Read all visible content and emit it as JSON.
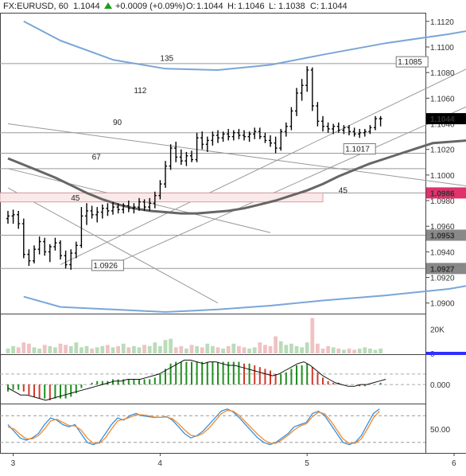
{
  "header": {
    "symbol": "FX:EURUSD, 60",
    "last": "1.1044",
    "change": "+0.0009 (+0.09%)",
    "o_label": "O:",
    "o_value": "1.1044",
    "h_label": "H:",
    "h_value": "1.1046",
    "l_label": "L:",
    "l_value": "1.1038",
    "c_label": "C:",
    "c_value": "1.1044",
    "up_color": "#1a9e1a"
  },
  "chart_data": [
    {
      "type": "candlestick",
      "price_axis": {
        "ylim": [
          1.0893,
          1.1123
        ],
        "ticks": [
          "1.1120",
          "1.1100",
          "1.1080",
          "1.1060",
          "1.1040",
          "1.1020",
          "1.1000",
          "1.0980",
          "1.0960",
          "1.0940",
          "1.0920",
          "1.0900"
        ],
        "badges": [
          {
            "text": "1.1044",
            "value": 1.1044,
            "color": "#000000"
          },
          {
            "text": "1.0986",
            "value": 1.0986,
            "color": "#e0336b"
          },
          {
            "text": "1.0953",
            "value": 1.0953,
            "color": "#888888"
          },
          {
            "text": "1.0927",
            "value": 1.0927,
            "color": "#888888"
          }
        ]
      },
      "x_axis": {
        "day_labels": [
          "3",
          "4",
          "5",
          "6"
        ],
        "day_index": [
          1,
          29,
          57,
          85
        ]
      },
      "annotations": [
        {
          "text": "1.1085",
          "x": 77,
          "y": 1.1085
        },
        {
          "text": "1.1017",
          "x": 67,
          "y": 1.1017
        },
        {
          "text": "1.0926",
          "x": 19,
          "y": 1.0926
        }
      ],
      "gann_labels": [
        {
          "text": "135",
          "x": 29,
          "y": 1.1089
        },
        {
          "text": "112",
          "x": 24,
          "y": 1.1064
        },
        {
          "text": "90",
          "x": 20,
          "y": 1.1039
        },
        {
          "text": "67",
          "x": 16,
          "y": 1.1012
        },
        {
          "text": "45",
          "x": 12,
          "y": 1.098
        },
        {
          "text": "45",
          "x": 63,
          "y": 1.0986
        },
        {
          "text": "67",
          "x": 91,
          "y": 1.1008
        }
      ],
      "horizontal_levels": [
        1.1087,
        1.1033,
        1.1017,
        1.1005,
        1.0986,
        1.0953,
        1.0927
      ],
      "ohlc": [
        [
          1.0966,
          1.0972,
          1.0962,
          1.0968
        ],
        [
          1.0968,
          1.0973,
          1.0962,
          1.0969
        ],
        [
          1.0969,
          1.0972,
          1.0958,
          1.0962
        ],
        [
          1.0962,
          1.0966,
          1.0935,
          1.0938
        ],
        [
          1.0938,
          1.0942,
          1.0929,
          1.0933
        ],
        [
          1.0933,
          1.0945,
          1.0931,
          1.0942
        ],
        [
          1.0942,
          1.0952,
          1.0938,
          1.0948
        ],
        [
          1.0948,
          1.0951,
          1.0937,
          1.094
        ],
        [
          1.094,
          1.0946,
          1.0932,
          1.0944
        ],
        [
          1.0944,
          1.0951,
          1.0941,
          1.0947
        ],
        [
          1.0947,
          1.0949,
          1.0934,
          1.0937
        ],
        [
          1.0937,
          1.0941,
          1.0927,
          1.093
        ],
        [
          1.093,
          1.0942,
          1.0926,
          1.0939
        ],
        [
          1.0939,
          1.0948,
          1.0935,
          1.0945
        ],
        [
          1.0945,
          1.0975,
          1.0943,
          1.0968
        ],
        [
          1.0968,
          1.0978,
          1.0961,
          1.0972
        ],
        [
          1.0972,
          1.0976,
          1.0966,
          1.0969
        ],
        [
          1.0969,
          1.0975,
          1.0963,
          1.0971
        ],
        [
          1.0971,
          1.0977,
          1.0966,
          1.0974
        ],
        [
          1.0974,
          1.0978,
          1.0968,
          1.0972
        ],
        [
          1.0972,
          1.0979,
          1.0969,
          1.0975
        ],
        [
          1.0975,
          1.0978,
          1.097,
          1.0973
        ],
        [
          1.0973,
          1.0978,
          1.097,
          1.0976
        ],
        [
          1.0976,
          1.098,
          1.0971,
          1.0974
        ],
        [
          1.0974,
          1.0978,
          1.097,
          1.0975
        ],
        [
          1.0975,
          1.0982,
          1.0972,
          1.0979
        ],
        [
          1.0979,
          1.0981,
          1.0972,
          1.0975
        ],
        [
          1.0975,
          1.0982,
          1.0972,
          1.0978
        ],
        [
          1.0978,
          1.0987,
          1.0974,
          1.0984
        ],
        [
          1.0984,
          1.0996,
          1.0981,
          1.0993
        ],
        [
          1.0993,
          1.1011,
          1.099,
          1.1007
        ],
        [
          1.1007,
          1.1024,
          1.1004,
          1.1021
        ],
        [
          1.1021,
          1.1026,
          1.101,
          1.1014
        ],
        [
          1.1014,
          1.102,
          1.1008,
          1.1011
        ],
        [
          1.1011,
          1.1018,
          1.1007,
          1.1015
        ],
        [
          1.1015,
          1.1019,
          1.101,
          1.1012
        ],
        [
          1.1012,
          1.1033,
          1.101,
          1.1029
        ],
        [
          1.1029,
          1.1034,
          1.102,
          1.1024
        ],
        [
          1.1024,
          1.103,
          1.1018,
          1.1027
        ],
        [
          1.1027,
          1.1034,
          1.1023,
          1.1031
        ],
        [
          1.1031,
          1.1035,
          1.1025,
          1.1029
        ],
        [
          1.1029,
          1.1034,
          1.1026,
          1.1032
        ],
        [
          1.1032,
          1.1036,
          1.1027,
          1.103
        ],
        [
          1.103,
          1.1035,
          1.1027,
          1.1033
        ],
        [
          1.1033,
          1.1036,
          1.1028,
          1.1031
        ],
        [
          1.1031,
          1.1035,
          1.1027,
          1.103
        ],
        [
          1.103,
          1.1034,
          1.1026,
          1.1032
        ],
        [
          1.1032,
          1.1037,
          1.1028,
          1.1034
        ],
        [
          1.1034,
          1.1037,
          1.1028,
          1.103
        ],
        [
          1.103,
          1.1033,
          1.1025,
          1.1027
        ],
        [
          1.1027,
          1.1031,
          1.1022,
          1.1025
        ],
        [
          1.1025,
          1.103,
          1.1017,
          1.1021
        ],
        [
          1.1021,
          1.1036,
          1.1019,
          1.1034
        ],
        [
          1.1034,
          1.1041,
          1.103,
          1.1038
        ],
        [
          1.1038,
          1.1053,
          1.1035,
          1.105
        ],
        [
          1.105,
          1.1068,
          1.1046,
          1.1064
        ],
        [
          1.1064,
          1.1075,
          1.1058,
          1.107
        ],
        [
          1.107,
          1.1085,
          1.1065,
          1.1082
        ],
        [
          1.1082,
          1.1084,
          1.105,
          1.1054
        ],
        [
          1.1054,
          1.1057,
          1.1038,
          1.1042
        ],
        [
          1.1042,
          1.1046,
          1.1034,
          1.1038
        ],
        [
          1.1038,
          1.1041,
          1.1033,
          1.1036
        ],
        [
          1.1036,
          1.104,
          1.1032,
          1.1038
        ],
        [
          1.1038,
          1.1041,
          1.1033,
          1.1035
        ],
        [
          1.1035,
          1.1039,
          1.1032,
          1.1037
        ],
        [
          1.1037,
          1.1039,
          1.1031,
          1.1034
        ],
        [
          1.1034,
          1.1037,
          1.103,
          1.1032
        ],
        [
          1.1032,
          1.1036,
          1.1029,
          1.1033
        ],
        [
          1.1033,
          1.1036,
          1.103,
          1.1034
        ],
        [
          1.1034,
          1.1039,
          1.1032,
          1.1037
        ],
        [
          1.1037,
          1.1046,
          1.1035,
          1.1044
        ],
        [
          1.1044,
          1.1046,
          1.1038,
          1.1044
        ]
      ],
      "ma_line": [
        1.1013,
        1.1008,
        1.1003,
        1.0998,
        1.0992,
        1.0986,
        1.0981,
        1.0977,
        1.0974,
        1.0972,
        1.0971,
        1.097,
        1.097,
        1.0971,
        1.0972,
        1.0974,
        1.0977,
        1.098,
        1.0984,
        1.0988,
        1.0993,
        1.0999,
        1.1004,
        1.1009,
        1.1013,
        1.1017,
        1.1021,
        1.1025,
        1.1028
      ],
      "ma_x": [
        0,
        3,
        6,
        9,
        12,
        15,
        18,
        21,
        24,
        27,
        30,
        33,
        36,
        39,
        42,
        45,
        48,
        51,
        54,
        57,
        60,
        63,
        66,
        69,
        72,
        75,
        78,
        81,
        91
      ],
      "env_upper": [
        1.112,
        1.1105,
        1.109,
        1.1083,
        1.1082,
        1.1086,
        1.1094,
        1.1103,
        1.111,
        1.1115
      ],
      "env_lower": [
        1.0905,
        1.0897,
        1.0895,
        1.0893,
        1.0895,
        1.0898,
        1.0902,
        1.0906,
        1.0911,
        1.0916
      ],
      "env_x": [
        3,
        10,
        20,
        30,
        40,
        50,
        60,
        72,
        84,
        91
      ]
    },
    {
      "type": "bar",
      "name": "volume",
      "ticks": [
        "20K",
        "0"
      ],
      "ylim": [
        0,
        30000
      ],
      "values": [
        4000,
        6000,
        5000,
        9000,
        8000,
        5000,
        4000,
        7000,
        6000,
        5000,
        8000,
        7000,
        6000,
        9000,
        5000,
        6000,
        4000,
        5000,
        6000,
        7000,
        5000,
        6000,
        8000,
        5000,
        6000,
        5000,
        7000,
        6000,
        9000,
        6000,
        11000,
        12000,
        5000,
        6000,
        4000,
        7000,
        6000,
        5000,
        8000,
        6000,
        5000,
        4000,
        6000,
        8000,
        6000,
        5000,
        4000,
        5000,
        9000,
        7000,
        6000,
        14000,
        10000,
        7000,
        8000,
        6000,
        5000,
        9000,
        29000,
        8000,
        4000,
        6000,
        5000,
        4000,
        3000,
        4000,
        3000,
        4000,
        5000,
        4000,
        3000,
        4000
      ]
    },
    {
      "type": "histogram",
      "name": "oscillator",
      "ticks": [
        "0.000"
      ],
      "ylim": [
        -0.001,
        0.0016
      ],
      "values": [
        -0.0004,
        -0.0003,
        -0.0003,
        -0.0004,
        -0.0006,
        -0.0007,
        -0.0008,
        -0.0008,
        -0.0009,
        -0.0008,
        -0.0008,
        -0.0008,
        -0.0007,
        -0.0005,
        -0.0002,
        0.0,
        0.0001,
        0.0002,
        0.0002,
        0.0002,
        0.0003,
        0.0003,
        0.0003,
        0.0003,
        0.0003,
        0.0003,
        0.0003,
        0.0003,
        0.0004,
        0.0006,
        0.0009,
        0.0012,
        0.0013,
        0.0013,
        0.0013,
        0.0013,
        0.0013,
        0.0013,
        0.0013,
        0.0013,
        0.0013,
        0.0013,
        0.0013,
        0.0013,
        0.0013,
        0.0012,
        0.0012,
        0.0011,
        0.001,
        0.0009,
        0.0008,
        0.0006,
        0.0006,
        0.0007,
        0.0009,
        0.0011,
        0.0011,
        0.0012,
        0.001,
        0.0007,
        0.0004,
        0.0002,
        0.0001,
        0.0001,
        0.0,
        0.0,
        0.0,
        -0.0001,
        -0.0001,
        0.0,
        0.0,
        0.0001
      ],
      "signal": [
        -0.0002,
        -0.0004,
        -0.0006,
        -0.0006,
        -0.0007,
        -0.0008,
        -0.0009,
        -0.0008,
        -0.0007,
        -0.0006,
        -0.0005,
        -0.0004,
        -0.0003,
        -0.0002,
        -0.0001,
        0.0,
        0.0001,
        0.0002,
        0.0002,
        0.0003,
        0.0003,
        0.0003,
        0.0004,
        0.0005,
        0.0006,
        0.0008,
        0.001,
        0.0012,
        0.0014,
        0.0014,
        0.0013,
        0.0012,
        0.0013,
        0.0013,
        0.0012,
        0.0011,
        0.0011,
        0.001,
        0.0009,
        0.0008,
        0.0007,
        0.0006,
        0.0005,
        0.0006,
        0.0008,
        0.001,
        0.0012,
        0.0013,
        0.0011,
        0.0008,
        0.0005,
        0.0003,
        0.0001,
        0.0,
        -0.0001,
        -0.0001,
        0.0,
        0.0,
        0.0001,
        0.0002,
        0.0003
      ],
      "signal_x_step": 1.2
    },
    {
      "type": "line",
      "name": "stochastic",
      "ticks": [
        "50.00"
      ],
      "ylim": [
        0,
        100
      ],
      "series": [
        {
          "color": "#3a8fd8",
          "values": [
            60,
            45,
            30,
            25,
            30,
            40,
            60,
            75,
            70,
            60,
            55,
            60,
            40,
            20,
            15,
            20,
            40,
            60,
            75,
            70,
            80,
            85,
            80,
            78,
            76,
            76,
            78,
            70,
            55,
            40,
            30,
            35,
            45,
            60,
            75,
            90,
            95,
            88,
            75,
            60,
            45,
            30,
            20,
            15,
            20,
            30,
            40,
            55,
            60,
            65,
            85,
            90,
            80,
            60,
            40,
            20,
            15,
            20,
            35,
            60,
            85,
            95
          ]
        },
        {
          "color": "#f08a30",
          "values": [
            55,
            50,
            38,
            28,
            28,
            35,
            50,
            68,
            72,
            65,
            58,
            57,
            48,
            30,
            18,
            18,
            30,
            50,
            68,
            72,
            76,
            82,
            82,
            80,
            77,
            76,
            77,
            73,
            62,
            48,
            36,
            34,
            40,
            52,
            68,
            84,
            92,
            90,
            80,
            66,
            52,
            38,
            26,
            18,
            18,
            26,
            36,
            48,
            57,
            62,
            78,
            88,
            84,
            68,
            48,
            28,
            18,
            18,
            28,
            50,
            75,
            90
          ]
        }
      ]
    }
  ]
}
